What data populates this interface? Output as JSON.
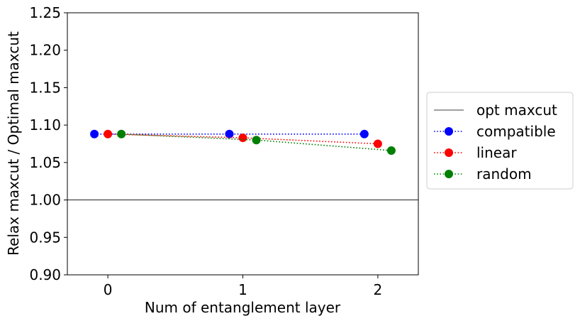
{
  "chart_data": {
    "type": "line",
    "xlabel": "Num of entanglement layer",
    "ylabel": "Relax maxcut / Optimal maxcut",
    "xlim": [
      -0.3,
      2.3
    ],
    "ylim": [
      0.9,
      1.25
    ],
    "xticks": [
      0,
      1,
      2
    ],
    "xtick_labels": [
      "0",
      "1",
      "2"
    ],
    "yticks": [
      0.9,
      0.95,
      1.0,
      1.05,
      1.1,
      1.15,
      1.2,
      1.25
    ],
    "ytick_labels": [
      "0.90",
      "0.95",
      "1.00",
      "1.05",
      "1.10",
      "1.15",
      "1.20",
      "1.25"
    ],
    "grid": false,
    "legend_position": "right-outside",
    "reference_line": {
      "name": "opt maxcut",
      "y": 1.0,
      "color": "#000000"
    },
    "series": [
      {
        "name": "compatible",
        "color": "#0000ff",
        "x": [
          -0.1,
          0.9,
          1.9
        ],
        "values": [
          1.088,
          1.088,
          1.088
        ]
      },
      {
        "name": "linear",
        "color": "#ff0000",
        "x": [
          0.0,
          1.0,
          2.0
        ],
        "values": [
          1.088,
          1.083,
          1.075
        ]
      },
      {
        "name": "random",
        "color": "#008000",
        "x": [
          0.1,
          1.1,
          2.1
        ],
        "values": [
          1.088,
          1.08,
          1.066
        ]
      }
    ]
  }
}
